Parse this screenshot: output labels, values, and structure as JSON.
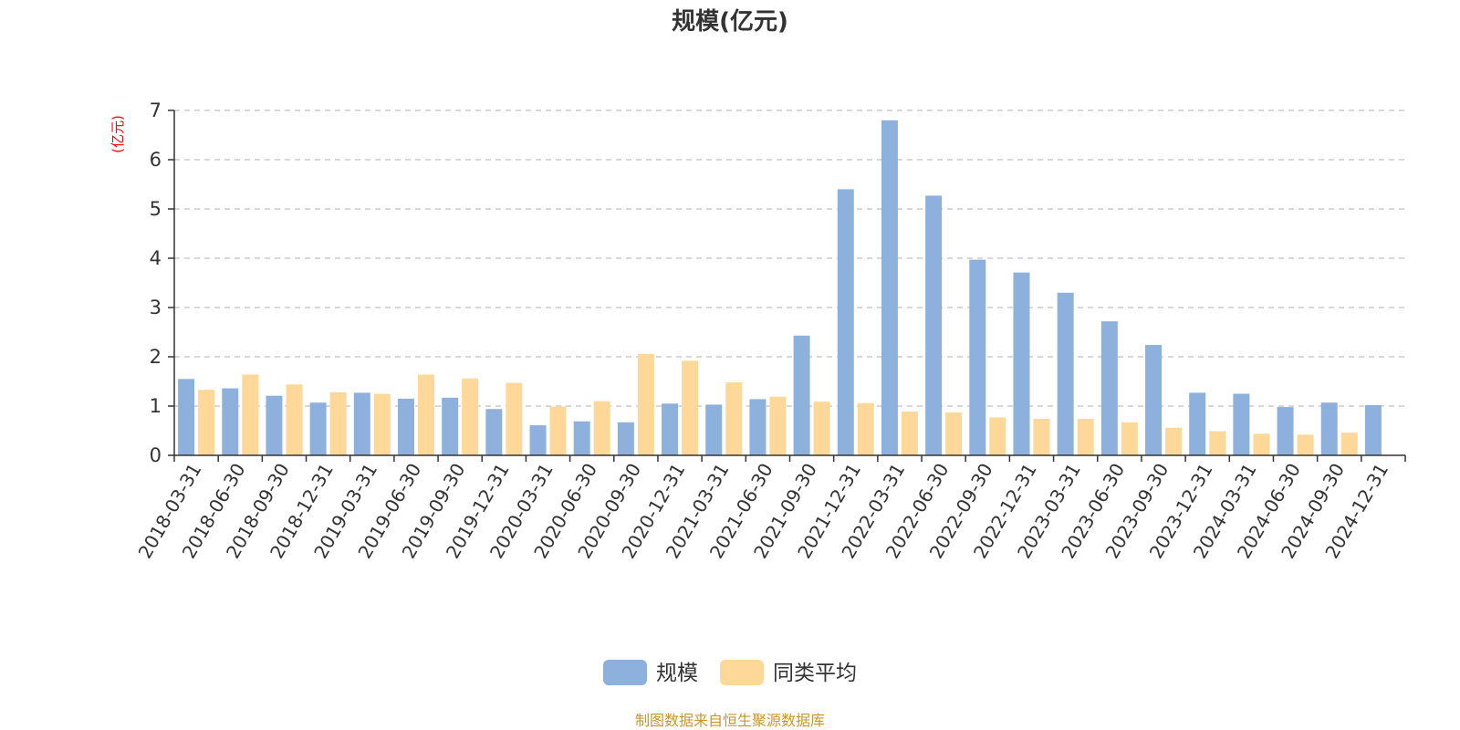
{
  "chart_data": {
    "type": "bar",
    "title": "规模(亿元)",
    "ylabel": "(亿元)",
    "ylim": [
      0,
      7
    ],
    "yticks": [
      0,
      1,
      2,
      3,
      4,
      5,
      6,
      7
    ],
    "grid": true,
    "legend_position": "bottom-center",
    "categories": [
      "2018-03-31",
      "2018-06-30",
      "2018-09-30",
      "2018-12-31",
      "2019-03-31",
      "2019-06-30",
      "2019-09-30",
      "2019-12-31",
      "2020-03-31",
      "2020-06-30",
      "2020-09-30",
      "2020-12-31",
      "2021-03-31",
      "2021-06-30",
      "2021-09-30",
      "2021-12-31",
      "2022-03-31",
      "2022-06-30",
      "2022-09-30",
      "2022-12-31",
      "2023-03-31",
      "2023-06-30",
      "2023-09-30",
      "2023-12-31",
      "2024-03-31",
      "2024-06-30",
      "2024-09-30",
      "2024-12-31"
    ],
    "series": [
      {
        "name": "规模",
        "color": "#8eb0dc",
        "values": [
          1.55,
          1.36,
          1.21,
          1.07,
          1.27,
          1.15,
          1.17,
          0.94,
          0.61,
          0.69,
          0.67,
          1.05,
          1.03,
          1.14,
          2.43,
          5.4,
          6.8,
          5.27,
          3.97,
          3.71,
          3.3,
          2.72,
          2.24,
          1.27,
          1.25,
          0.98,
          1.07,
          1.02
        ]
      },
      {
        "name": "同类平均",
        "color": "#fdd898",
        "values": [
          1.33,
          1.64,
          1.44,
          1.28,
          1.25,
          1.64,
          1.56,
          1.47,
          0.99,
          1.1,
          2.06,
          1.92,
          1.48,
          1.19,
          1.09,
          1.06,
          0.89,
          0.87,
          0.77,
          0.74,
          0.74,
          0.67,
          0.56,
          0.49,
          0.44,
          0.42,
          0.46,
          null
        ]
      }
    ],
    "source_note": "制图数据来自恒生聚源数据库"
  }
}
